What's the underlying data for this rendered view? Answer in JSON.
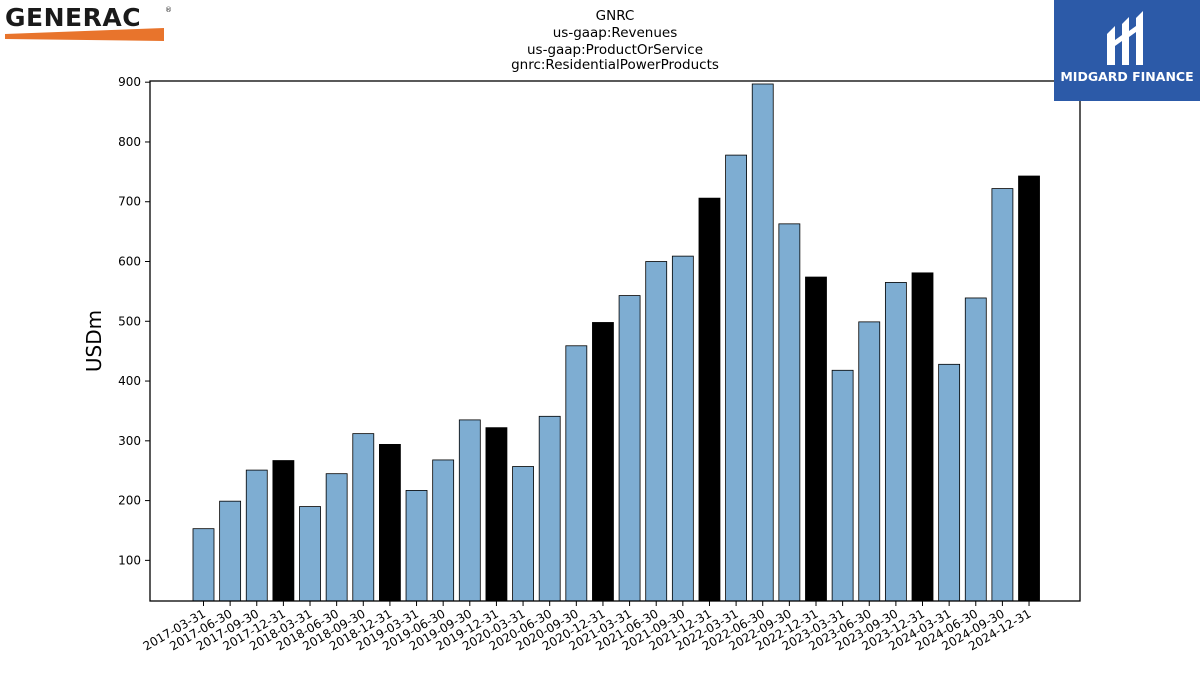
{
  "brand_left": {
    "name": "GENERAC",
    "mark": "®",
    "accent": "#e8742c"
  },
  "brand_right": {
    "name": "MIDGARD FINANCE",
    "bg": "#2c5aa8"
  },
  "colors": {
    "bar_default": "#7eadd2",
    "bar_q4": "#000000",
    "edge": "#000000"
  },
  "chart_data": {
    "type": "bar",
    "title_lines": [
      "GNRC",
      "us-gaap:Revenues",
      "us-gaap:ProductOrService",
      "gnrc:ResidentialPowerProducts"
    ],
    "xlabel": "",
    "ylabel": "USDm",
    "ylim": [
      32,
      902
    ],
    "yticks": [
      100,
      200,
      300,
      400,
      500,
      600,
      700,
      800,
      900
    ],
    "categories": [
      "2017-03-31",
      "2017-06-30",
      "2017-09-30",
      "2017-12-31",
      "2018-03-31",
      "2018-06-30",
      "2018-09-30",
      "2018-12-31",
      "2019-03-31",
      "2019-06-30",
      "2019-09-30",
      "2019-12-31",
      "2020-03-31",
      "2020-06-30",
      "2020-09-30",
      "2020-12-31",
      "2021-03-31",
      "2021-06-30",
      "2021-09-30",
      "2021-12-31",
      "2022-03-31",
      "2022-06-30",
      "2022-09-30",
      "2022-12-31",
      "2023-03-31",
      "2023-06-30",
      "2023-09-30",
      "2023-12-31",
      "2024-03-31",
      "2024-06-30",
      "2024-09-30",
      "2024-12-31"
    ],
    "values": [
      153,
      199,
      251,
      267,
      190,
      245,
      312,
      294,
      217,
      268,
      335,
      322,
      257,
      341,
      459,
      498,
      543,
      600,
      609,
      706,
      778,
      897,
      663,
      574,
      418,
      499,
      565,
      581,
      428,
      539,
      722,
      743
    ],
    "highlighted_q4": [
      false,
      false,
      false,
      true,
      false,
      false,
      false,
      true,
      false,
      false,
      false,
      true,
      false,
      false,
      false,
      true,
      false,
      false,
      false,
      true,
      false,
      false,
      false,
      true,
      false,
      false,
      false,
      true,
      false,
      false,
      false,
      true
    ]
  }
}
